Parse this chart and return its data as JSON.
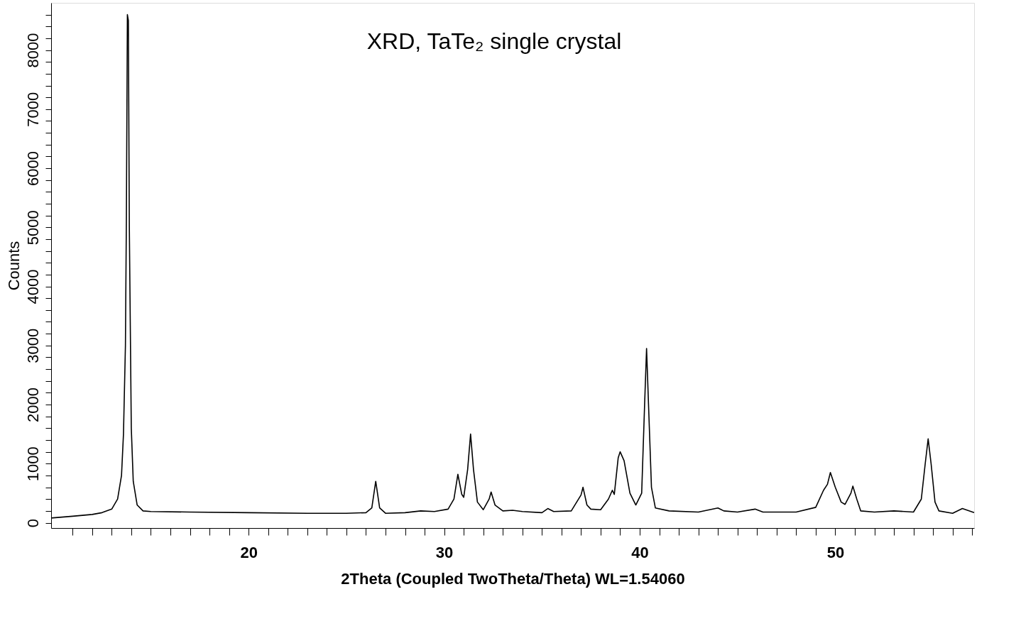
{
  "chart_data": {
    "type": "line",
    "title": "XRD, TaTe₂ single crystal",
    "xlabel": "2Theta (Coupled TwoTheta/Theta) WL=1.54060",
    "ylabel": "Counts",
    "x": [
      9.9,
      11,
      12,
      12.5,
      13,
      13.3,
      13.5,
      13.6,
      13.7,
      13.75,
      13.8,
      13.85,
      13.9,
      14.0,
      14.1,
      14.3,
      14.6,
      15,
      17,
      20,
      23,
      25,
      26,
      26.3,
      26.5,
      26.7,
      27,
      28,
      28.8,
      29.5,
      30.2,
      30.5,
      30.7,
      30.9,
      31.0,
      31.2,
      31.35,
      31.5,
      31.7,
      32,
      32.3,
      32.4,
      32.6,
      33,
      33.5,
      34,
      35,
      35.3,
      35.6,
      36.5,
      37,
      37.1,
      37.3,
      37.5,
      38,
      38.4,
      38.6,
      38.7,
      38.9,
      39.0,
      39.2,
      39.5,
      39.8,
      40.1,
      40.25,
      40.35,
      40.45,
      40.6,
      40.8,
      41.5,
      43,
      44,
      44.3,
      45,
      45.9,
      46.3,
      48,
      49,
      49.4,
      49.6,
      49.75,
      50,
      50.3,
      50.5,
      50.8,
      50.9,
      51.1,
      51.3,
      52,
      53,
      54,
      54.4,
      54.6,
      54.75,
      54.9,
      55.1,
      55.3,
      56,
      56.5,
      57.1
    ],
    "series": [
      {
        "color": "#000000",
        "values": [
          80,
          110,
          140,
          170,
          230,
          400,
          800,
          1500,
          3000,
          5200,
          8600,
          8500,
          5000,
          1600,
          700,
          300,
          200,
          190,
          180,
          170,
          160,
          160,
          170,
          250,
          700,
          250,
          160,
          170,
          200,
          190,
          230,
          400,
          820,
          480,
          430,
          900,
          1500,
          900,
          350,
          220,
          400,
          520,
          300,
          200,
          210,
          190,
          170,
          240,
          190,
          200,
          470,
          600,
          300,
          230,
          220,
          400,
          550,
          480,
          1100,
          1200,
          1050,
          500,
          300,
          500,
          2000,
          2950,
          2000,
          600,
          250,
          200,
          180,
          250,
          200,
          180,
          230,
          180,
          180,
          260,
          550,
          650,
          850,
          600,
          350,
          310,
          500,
          620,
          400,
          200,
          180,
          200,
          180,
          400,
          1000,
          1420,
          1000,
          350,
          200,
          160,
          240,
          170
        ]
      }
    ],
    "xlim": [
      9.9,
      57.1
    ],
    "xticks": [
      {
        "value": 11,
        "label": null
      },
      {
        "value": 12,
        "label": null
      },
      {
        "value": 13,
        "label": null
      },
      {
        "value": 14,
        "label": null
      },
      {
        "value": 15,
        "label": null
      },
      {
        "value": 16,
        "label": null
      },
      {
        "value": 17,
        "label": null
      },
      {
        "value": 18,
        "label": null
      },
      {
        "value": 19,
        "label": null
      },
      20,
      {
        "value": 21,
        "label": null
      },
      {
        "value": 22,
        "label": null
      },
      {
        "value": 23,
        "label": null
      },
      {
        "value": 24,
        "label": null
      },
      {
        "value": 25,
        "label": null
      },
      {
        "value": 26,
        "label": null
      },
      {
        "value": 27,
        "label": null
      },
      {
        "value": 28,
        "label": null
      },
      {
        "value": 29,
        "label": null
      },
      30,
      {
        "value": 31,
        "label": null
      },
      {
        "value": 32,
        "label": null
      },
      {
        "value": 33,
        "label": null
      },
      {
        "value": 34,
        "label": null
      },
      {
        "value": 35,
        "label": null
      },
      {
        "value": 36,
        "label": null
      },
      {
        "value": 37,
        "label": null
      },
      {
        "value": 38,
        "label": null
      },
      {
        "value": 39,
        "label": null
      },
      40,
      {
        "value": 41,
        "label": null
      },
      {
        "value": 42,
        "label": null
      },
      {
        "value": 43,
        "label": null
      },
      {
        "value": 44,
        "label": null
      },
      {
        "value": 45,
        "label": null
      },
      {
        "value": 46,
        "label": null
      },
      {
        "value": 47,
        "label": null
      },
      {
        "value": 48,
        "label": null
      },
      {
        "value": 49,
        "label": null
      },
      50,
      {
        "value": 51,
        "label": null
      },
      {
        "value": 52,
        "label": null
      },
      {
        "value": 53,
        "label": null
      },
      {
        "value": 54,
        "label": null
      },
      {
        "value": 55,
        "label": null
      },
      {
        "value": 56,
        "label": null
      },
      {
        "value": 57,
        "label": null
      }
    ],
    "ylim": [
      -90,
      8800
    ],
    "yticks": [
      0,
      {
        "value": 200,
        "label": null
      },
      {
        "value": 400,
        "label": null
      },
      {
        "value": 600,
        "label": null
      },
      {
        "value": 800,
        "label": null
      },
      1000,
      {
        "value": 1200,
        "label": null
      },
      {
        "value": 1400,
        "label": null
      },
      {
        "value": 1600,
        "label": null
      },
      {
        "value": 1800,
        "label": null
      },
      2000,
      {
        "value": 2200,
        "label": null
      },
      {
        "value": 2400,
        "label": null
      },
      {
        "value": 2600,
        "label": null
      },
      {
        "value": 2800,
        "label": null
      },
      3000,
      {
        "value": 3200,
        "label": null
      },
      {
        "value": 3400,
        "label": null
      },
      {
        "value": 3600,
        "label": null
      },
      {
        "value": 3800,
        "label": null
      },
      4000,
      {
        "value": 4200,
        "label": null
      },
      {
        "value": 4400,
        "label": null
      },
      {
        "value": 4600,
        "label": null
      },
      {
        "value": 4800,
        "label": null
      },
      5000,
      {
        "value": 5200,
        "label": null
      },
      {
        "value": 5400,
        "label": null
      },
      {
        "value": 5600,
        "label": null
      },
      {
        "value": 5800,
        "label": null
      },
      6000,
      {
        "value": 6200,
        "label": null
      },
      {
        "value": 6400,
        "label": null
      },
      {
        "value": 6600,
        "label": null
      },
      {
        "value": 6800,
        "label": null
      },
      7000,
      {
        "value": 7200,
        "label": null
      },
      {
        "value": 7400,
        "label": null
      },
      {
        "value": 7600,
        "label": null
      },
      {
        "value": 7800,
        "label": null
      },
      8000,
      {
        "value": 8200,
        "label": null
      },
      {
        "value": 8400,
        "label": null
      },
      {
        "value": 8600,
        "label": null
      }
    ],
    "grid": false,
    "legend": false,
    "marker": "none",
    "line_style": "solid"
  }
}
